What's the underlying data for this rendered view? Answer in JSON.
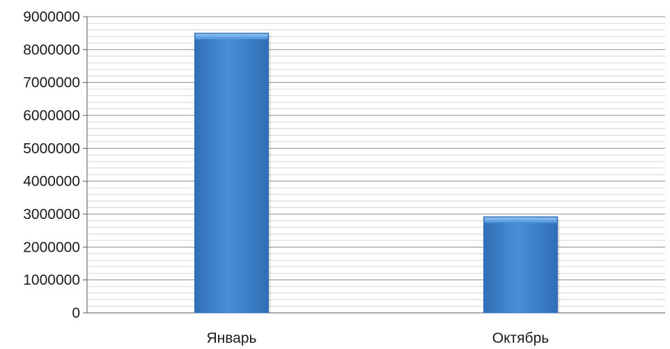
{
  "chart_data": {
    "type": "bar",
    "categories": [
      "Январь",
      "Октябрь"
    ],
    "values": [
      8500000,
      2920000
    ],
    "title": "",
    "xlabel": "",
    "ylabel": "",
    "ylim": [
      0,
      9000000
    ],
    "yticks": [
      0,
      1000000,
      2000000,
      3000000,
      4000000,
      5000000,
      6000000,
      7000000,
      8000000,
      9000000
    ],
    "ytick_labels": [
      "0",
      "1000000",
      "2000000",
      "3000000",
      "4000000",
      "5000000",
      "6000000",
      "7000000",
      "8000000",
      "9000000"
    ],
    "grid": true,
    "legend": "none",
    "colors": {
      "bar": "#4a8fd6",
      "bar_dark": "#2f6fb5",
      "bar_light": "#8fc3f0",
      "gridline_major": "#8c8c8c",
      "gridline_minor": "#c9c9c9",
      "axis": "#555555",
      "text": "#1a1a1a"
    }
  }
}
